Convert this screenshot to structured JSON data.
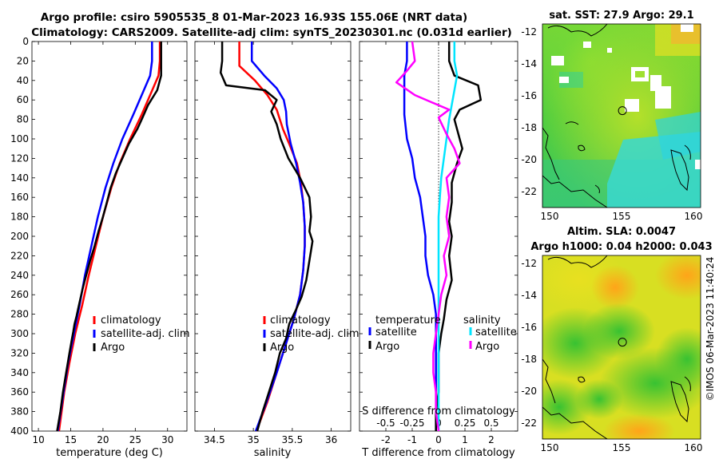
{
  "title_line1": "Argo profile: csiro 5905535_8 01-Mar-2023 16.93S 155.06E (NRT data)",
  "title_line2": "Climatology: CARS2009. Satellite-adj clim: synTS_20230301.nc (0.031d earlier)",
  "copyright": "©IMOS 06-Mar-2023 11:40:24",
  "colors": {
    "climatology": "#ff0000",
    "satellite": "#0000ff",
    "argo": "#000000",
    "sat_salinity": "#00e5ff",
    "argo_salinity": "#ff00ff"
  },
  "chart_data": [
    {
      "type": "line",
      "name": "temperature-profile",
      "xlabel": "temperature (deg C)",
      "xlim": [
        9,
        33
      ],
      "xticks": [
        "10",
        "15",
        "20",
        "25",
        "30"
      ],
      "ylim": [
        0,
        400
      ],
      "yticks": [
        "0",
        "20",
        "40",
        "60",
        "80",
        "100",
        "120",
        "140",
        "160",
        "180",
        "200",
        "220",
        "240",
        "260",
        "280",
        "300",
        "320",
        "340",
        "360",
        "380",
        "400"
      ],
      "legend": [
        "climatology",
        "satellite-adj. clim",
        "Argo"
      ],
      "series": [
        {
          "name": "climatology",
          "color": "#ff0000",
          "points": [
            [
              28.8,
              0
            ],
            [
              28.8,
              20
            ],
            [
              28.6,
              35
            ],
            [
              27.3,
              55
            ],
            [
              26,
              75
            ],
            [
              24.2,
              100
            ],
            [
              22.6,
              125
            ],
            [
              21.3,
              150
            ],
            [
              20,
              180
            ],
            [
              18.9,
              210
            ],
            [
              17.8,
              240
            ],
            [
              16.8,
              270
            ],
            [
              15.7,
              300
            ],
            [
              14.8,
              330
            ],
            [
              14,
              360
            ],
            [
              13.2,
              400
            ]
          ]
        },
        {
          "name": "satellite-adj. clim",
          "color": "#0000ff",
          "points": [
            [
              27.6,
              0
            ],
            [
              27.6,
              20
            ],
            [
              27.3,
              35
            ],
            [
              26,
              55
            ],
            [
              24.7,
              75
            ],
            [
              23,
              100
            ],
            [
              21.6,
              125
            ],
            [
              20.4,
              150
            ],
            [
              19.2,
              180
            ],
            [
              18.2,
              210
            ],
            [
              17.2,
              240
            ],
            [
              16.4,
              270
            ],
            [
              15.5,
              300
            ],
            [
              14.6,
              330
            ],
            [
              13.9,
              360
            ],
            [
              13,
              400
            ]
          ]
        },
        {
          "name": "Argo",
          "color": "#000000",
          "points": [
            [
              29,
              0
            ],
            [
              29,
              20
            ],
            [
              29,
              35
            ],
            [
              28.4,
              50
            ],
            [
              27,
              65
            ],
            [
              26,
              80
            ],
            [
              25.3,
              90
            ],
            [
              24,
              105
            ],
            [
              23,
              120
            ],
            [
              22,
              135
            ],
            [
              21.2,
              150
            ],
            [
              20.6,
              165
            ],
            [
              20,
              180
            ],
            [
              19.3,
              195
            ],
            [
              18.7,
              210
            ],
            [
              18,
              225
            ],
            [
              17.4,
              240
            ],
            [
              16.8,
              255
            ],
            [
              16.3,
              270
            ],
            [
              15.9,
              282
            ],
            [
              15.6,
              290
            ],
            [
              15.4,
              298
            ],
            [
              15.2,
              305
            ],
            [
              14.8,
              320
            ],
            [
              14.3,
              340
            ],
            [
              13.8,
              360
            ],
            [
              13.4,
              380
            ],
            [
              12.9,
              400
            ]
          ]
        }
      ]
    },
    {
      "type": "line",
      "name": "salinity-profile",
      "xlabel": "salinity",
      "xlim": [
        34.25,
        36.25
      ],
      "xticks": [
        "34.5",
        "35",
        "35.5",
        "36"
      ],
      "ylim": [
        0,
        400
      ],
      "legend": [
        "climatology",
        "satellite-adj. clim",
        "Argo"
      ],
      "series": [
        {
          "name": "climatology",
          "color": "#ff0000",
          "points": [
            [
              34.82,
              0
            ],
            [
              34.82,
              25
            ],
            [
              35.02,
              40
            ],
            [
              35.18,
              55
            ],
            [
              35.3,
              70
            ],
            [
              35.38,
              90
            ],
            [
              35.46,
              105
            ],
            [
              35.56,
              125
            ],
            [
              35.61,
              145
            ],
            [
              35.64,
              165
            ],
            [
              35.66,
              190
            ],
            [
              35.66,
              210
            ],
            [
              35.64,
              235
            ],
            [
              35.6,
              260
            ],
            [
              35.52,
              285
            ],
            [
              35.42,
              310
            ],
            [
              35.3,
              340
            ],
            [
              35.18,
              370
            ],
            [
              35.04,
              400
            ]
          ]
        },
        {
          "name": "satellite-adj. clim",
          "color": "#0000ff",
          "points": [
            [
              34.98,
              0
            ],
            [
              34.98,
              20
            ],
            [
              35.14,
              35
            ],
            [
              35.3,
              48
            ],
            [
              35.39,
              60
            ],
            [
              35.42,
              72
            ],
            [
              35.43,
              85
            ],
            [
              35.48,
              105
            ],
            [
              35.55,
              125
            ],
            [
              35.6,
              145
            ],
            [
              35.64,
              165
            ],
            [
              35.66,
              190
            ],
            [
              35.66,
              210
            ],
            [
              35.64,
              235
            ],
            [
              35.6,
              260
            ],
            [
              35.52,
              285
            ],
            [
              35.42,
              310
            ],
            [
              35.3,
              340
            ],
            [
              35.17,
              370
            ],
            [
              35.03,
              400
            ]
          ]
        },
        {
          "name": "Argo",
          "color": "#000000",
          "points": [
            [
              34.6,
              0
            ],
            [
              34.6,
              20
            ],
            [
              34.58,
              32
            ],
            [
              34.65,
              45
            ],
            [
              35.15,
              50
            ],
            [
              35.3,
              60
            ],
            [
              35.23,
              72
            ],
            [
              35.3,
              85
            ],
            [
              35.35,
              100
            ],
            [
              35.45,
              120
            ],
            [
              35.6,
              140
            ],
            [
              35.72,
              160
            ],
            [
              35.74,
              180
            ],
            [
              35.72,
              195
            ],
            [
              35.76,
              205
            ],
            [
              35.72,
              225
            ],
            [
              35.68,
              245
            ],
            [
              35.62,
              262
            ],
            [
              35.55,
              275
            ],
            [
              35.46,
              290
            ],
            [
              35.42,
              305
            ],
            [
              35.34,
              320
            ],
            [
              35.28,
              340
            ],
            [
              35.2,
              360
            ],
            [
              35.12,
              380
            ],
            [
              35.05,
              400
            ]
          ]
        }
      ]
    },
    {
      "type": "line",
      "name": "difference-profile",
      "xlabel": "T difference from climatology",
      "xlabel_top": "S difference from climatology",
      "xlim": [
        -3,
        3
      ],
      "xticks": [
        "-2",
        "-1",
        "0",
        "1",
        "2"
      ],
      "xticks_top": [
        "-0.5",
        "-0.25",
        "0",
        "0.25",
        "0.5"
      ],
      "ylim": [
        0,
        400
      ],
      "legend_temperature": [
        "temperature",
        "satellite",
        "Argo"
      ],
      "legend_salinity": [
        "salinity",
        "satellite",
        "Argo"
      ],
      "series": [
        {
          "name": "temperature satellite",
          "color": "#0000ff",
          "points": [
            [
              -1.2,
              0
            ],
            [
              -1.2,
              20
            ],
            [
              -1.3,
              35
            ],
            [
              -1.3,
              55
            ],
            [
              -1.3,
              75
            ],
            [
              -1.2,
              100
            ],
            [
              -1,
              120
            ],
            [
              -0.9,
              140
            ],
            [
              -0.7,
              160
            ],
            [
              -0.6,
              180
            ],
            [
              -0.5,
              200
            ],
            [
              -0.5,
              220
            ],
            [
              -0.4,
              240
            ],
            [
              -0.2,
              260
            ],
            [
              -0.1,
              280
            ],
            [
              -0.1,
              300
            ],
            [
              -0.1,
              320
            ],
            [
              -0.1,
              340
            ],
            [
              -0.1,
              360
            ],
            [
              -0.1,
              380
            ],
            [
              -0.1,
              400
            ]
          ]
        },
        {
          "name": "temperature Argo",
          "color": "#000000",
          "points": [
            [
              0.4,
              0
            ],
            [
              0.4,
              20
            ],
            [
              0.6,
              35
            ],
            [
              1.5,
              45
            ],
            [
              1.6,
              60
            ],
            [
              0.8,
              70
            ],
            [
              0.6,
              80
            ],
            [
              0.7,
              90
            ],
            [
              0.9,
              110
            ],
            [
              0.7,
              125
            ],
            [
              0.5,
              145
            ],
            [
              0.5,
              165
            ],
            [
              0.4,
              185
            ],
            [
              0.5,
              200
            ],
            [
              0.4,
              220
            ],
            [
              0.5,
              245
            ],
            [
              0.3,
              265
            ],
            [
              0.2,
              285
            ],
            [
              0.1,
              300
            ],
            [
              0,
              320
            ],
            [
              0,
              340
            ],
            [
              0,
              360
            ],
            [
              -0.1,
              380
            ],
            [
              -0.1,
              400
            ]
          ]
        },
        {
          "name": "salinity satellite",
          "color": "#00e5ff",
          "points": [
            [
              0.6,
              0
            ],
            [
              0.6,
              20
            ],
            [
              0.7,
              35
            ],
            [
              0.6,
              50
            ],
            [
              0.5,
              65
            ],
            [
              0.4,
              80
            ],
            [
              0.3,
              100
            ],
            [
              0.2,
              120
            ],
            [
              0.1,
              140
            ],
            [
              0.05,
              160
            ],
            [
              0,
              180
            ],
            [
              0,
              200
            ],
            [
              0,
              220
            ],
            [
              0,
              240
            ],
            [
              0,
              260
            ],
            [
              0,
              280
            ],
            [
              0,
              300
            ],
            [
              0,
              320
            ],
            [
              0,
              340
            ],
            [
              0,
              360
            ],
            [
              0,
              380
            ],
            [
              0,
              400
            ]
          ]
        },
        {
          "name": "salinity Argo",
          "color": "#ff00ff",
          "points": [
            [
              -1,
              0
            ],
            [
              -0.9,
              20
            ],
            [
              -1.2,
              30
            ],
            [
              -1.6,
              42
            ],
            [
              -0.9,
              55
            ],
            [
              -0.3,
              62
            ],
            [
              0.4,
              70
            ],
            [
              0,
              78
            ],
            [
              0.3,
              95
            ],
            [
              0.6,
              110
            ],
            [
              0.8,
              125
            ],
            [
              0.3,
              140
            ],
            [
              0.4,
              160
            ],
            [
              0.3,
              180
            ],
            [
              0.4,
              200
            ],
            [
              0.2,
              220
            ],
            [
              0.3,
              240
            ],
            [
              0.1,
              260
            ],
            [
              0,
              280
            ],
            [
              -0.1,
              300
            ],
            [
              -0.2,
              320
            ],
            [
              -0.2,
              340
            ],
            [
              -0.1,
              360
            ],
            [
              -0.1,
              380
            ],
            [
              0,
              400
            ]
          ]
        }
      ]
    },
    {
      "type": "heatmap",
      "name": "sst-map",
      "title": "sat. SST: 27.9 Argo: 29.1",
      "xlim": [
        149.5,
        160.5
      ],
      "ylim": [
        -23,
        -11.5
      ],
      "xticks": [
        "150",
        "155",
        "160"
      ],
      "yticks": [
        "-12",
        "-14",
        "-16",
        "-18",
        "-20",
        "-22"
      ],
      "profile_lon": 155.06,
      "profile_lat": -16.93
    },
    {
      "type": "heatmap",
      "name": "sla-map",
      "title_line1": "Altim. SLA: 0.0047",
      "title_line2": "Argo h1000: 0.04 h2000: 0.043",
      "xlim": [
        149.5,
        160.5
      ],
      "ylim": [
        -23,
        -11.5
      ],
      "xticks": [
        "150",
        "155",
        "160"
      ],
      "yticks": [
        "-12",
        "-14",
        "-16",
        "-18",
        "-20",
        "-22"
      ],
      "profile_lon": 155.06,
      "profile_lat": -16.93
    }
  ]
}
